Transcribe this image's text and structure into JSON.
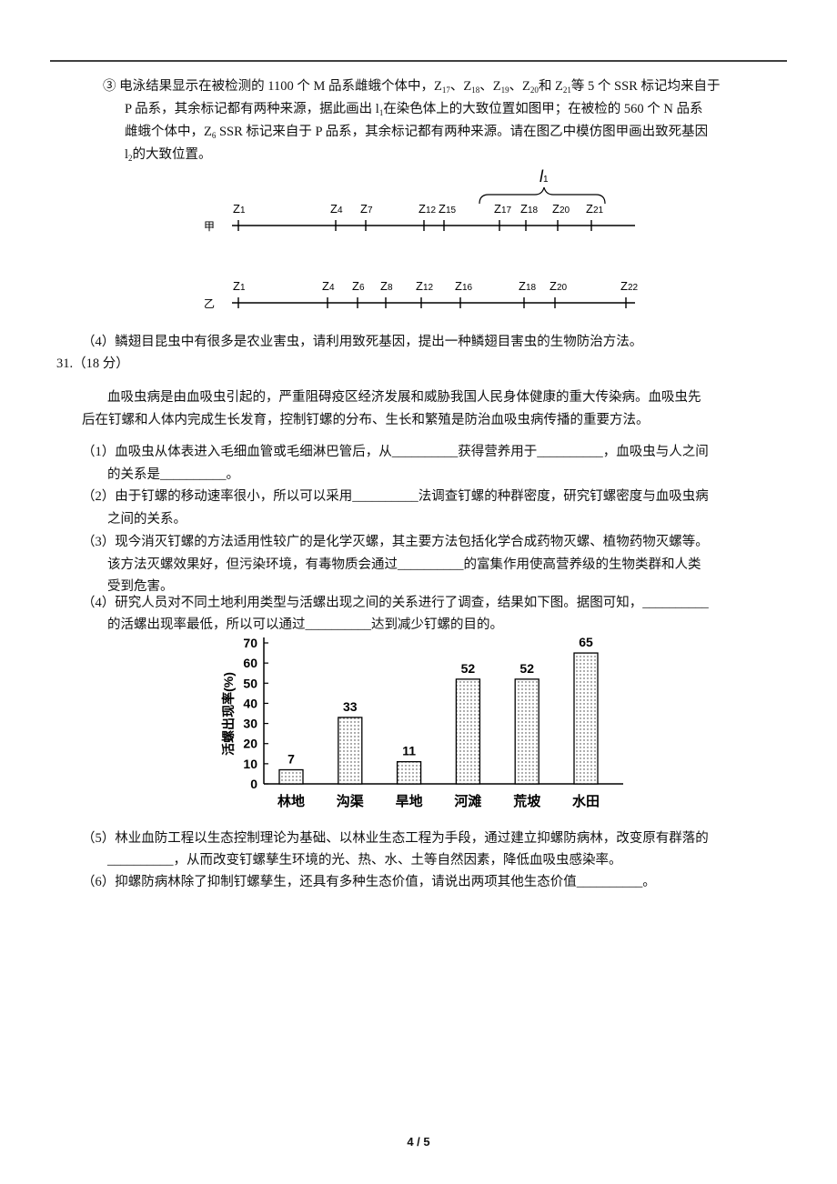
{
  "q3": {
    "lines": [
      [
        "③  电泳结果显示在被检测的 1100 个 M 品系雌蛾个体中，Z",
        "17",
        "、Z",
        "18",
        "、Z",
        "19",
        "、Z",
        "20",
        "和 Z",
        "21",
        "等 5 个 SSR 标记均来自于"
      ],
      [
        "P 品系，其余标记都有两种来源，据此画出 l",
        "1",
        "在染色体上的大致位置如图甲；在被检的 560 个 N 品系"
      ],
      [
        "雌蛾个体中，Z",
        "6",
        " SSR 标记来自于 P 品系，其余标记都有两种来源。请在图乙中模仿图甲画出致死基因"
      ],
      [
        "l",
        "2",
        "的大致位置。"
      ]
    ]
  },
  "diagrams": [
    {
      "label": "甲",
      "markers": [
        "Z1",
        "Z4",
        "Z7",
        "Z12",
        "Z15",
        "Z17",
        "Z18",
        "Z20",
        "Z21"
      ],
      "bracket": [
        "l",
        "1"
      ]
    },
    {
      "label": "乙",
      "markers": [
        "Z1",
        "Z4",
        "Z6",
        "Z8",
        "Z12",
        "Z16",
        "Z18",
        "Z20",
        "Z22"
      ]
    }
  ],
  "q4": "（4）鳞翅目昆虫中有很多是农业害虫，请利用致死基因，提出一种鳞翅目害虫的生物防治方法。",
  "q31": {
    "heading": "31.（18 分）",
    "intro": [
      "血吸虫病是由血吸虫引起的，严重阻碍疫区经济发展和威胁我国人民身体健康的重大传染病。血吸虫先",
      "后在钉螺和人体内完成生长发育，控制钉螺的分布、生长和繁殖是防治血吸虫病传播的重要方法。"
    ],
    "items": [
      [
        "（1）血吸虫从体表进入毛细血管或毛细淋巴管后，从__________获得营养用于__________，血吸虫与人之间",
        "的关系是__________。"
      ],
      [
        "（2）由于钉螺的移动速率很小，所以可以采用__________法调查钉螺的种群密度，研究钉螺密度与血吸虫病",
        "之间的关系。"
      ],
      [
        "（3）现今消灭钉螺的方法适用性较广的是化学灭螺，其主要方法包括化学合成药物灭螺、植物药物灭螺等。",
        "该方法灭螺效果好，但污染环境，有毒物质会通过__________的富集作用使高营养级的生物类群和人类",
        "受到危害。"
      ],
      [
        "（4）研究人员对不同土地利用类型与活螺出现之间的关系进行了调查，结果如下图。据图可知，__________",
        "的活螺出现率最低，所以可以通过__________达到减少钉螺的目的。"
      ],
      [
        "（5）林业血防工程以生态控制理论为基础、以林业生态工程为手段，通过建立抑螺防病林，改变原有群落的",
        "__________，从而改变钉螺孳生环境的光、热、水、土等自然因素，降低血吸虫感染率。"
      ],
      [
        "（6）抑螺防病林除了抑制钉螺孳生，还具有多种生态价值，请说出两项其他生态价值__________。"
      ]
    ]
  },
  "chart_data": {
    "type": "bar",
    "y_label": "活螺出现率(%)",
    "categories": [
      "林地",
      "沟渠",
      "旱地",
      "河滩",
      "荒坡",
      "水田"
    ],
    "values": [
      7,
      33,
      11,
      52,
      52,
      65
    ],
    "ylim": [
      0,
      70
    ],
    "yticks": [
      0,
      10,
      20,
      30,
      40,
      50,
      60,
      70
    ],
    "color": "#000000"
  },
  "footer": "4 / 5"
}
